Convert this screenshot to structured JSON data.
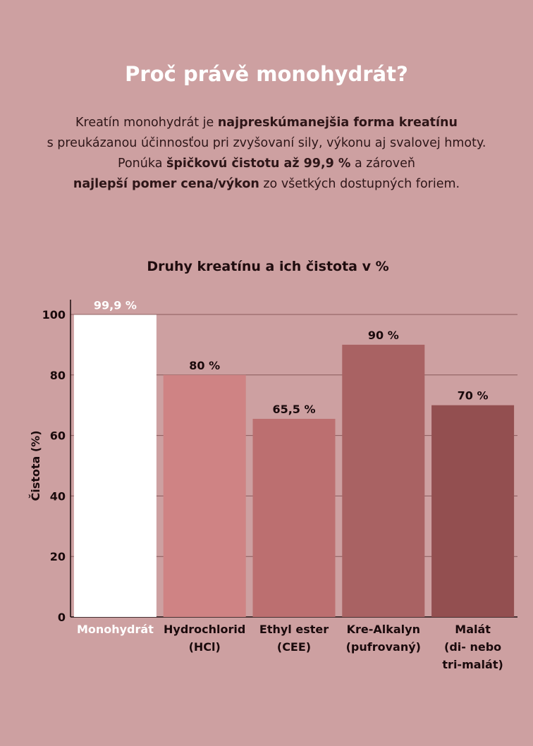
{
  "headline": "Proč právě monohydrát?",
  "intro": {
    "l1a": "Kreatín monohydrát je ",
    "l1b": "najpreskúmanejšia forma kreatínu",
    "l2": "s preukázanou účinnosťou pri zvyšovaní sily, výkonu aj svalovej hmoty.",
    "l3a": "Ponúka ",
    "l3b": "špičkovú čistotu až 99,9 %",
    "l3c": " a zároveň",
    "l4a": "najlepší pomer cena/výkon",
    "l4b": " zo všetkých dostupných foriem."
  },
  "colors": {
    "background": "#cda0a1",
    "bars": [
      "#ffffff",
      "#cf8384",
      "#bc6f70",
      "#a96263",
      "#934f50"
    ]
  },
  "chart_data": {
    "type": "bar",
    "title": "Druhy kreatínu a ich čistota v %",
    "ylabel": "Čistota (%)",
    "xlabel": "",
    "ylim": [
      0,
      100
    ],
    "yticks": [
      "0",
      "20",
      "40",
      "60",
      "80",
      "100"
    ],
    "grid": true,
    "categories": [
      [
        "Monohydrát"
      ],
      [
        "Hydrochlorid",
        "(HCl)"
      ],
      [
        "Ethyl ester",
        "(CEE)"
      ],
      [
        "Kre-Alkalyn",
        "(pufrovaný)"
      ],
      [
        "Malát",
        "(di- nebo",
        "tri-malát)"
      ]
    ],
    "values": [
      99.9,
      80,
      65.5,
      90,
      70
    ],
    "value_labels": [
      "99,9 %",
      "80 %",
      "65,5 %",
      "90 %",
      "70 %"
    ]
  }
}
